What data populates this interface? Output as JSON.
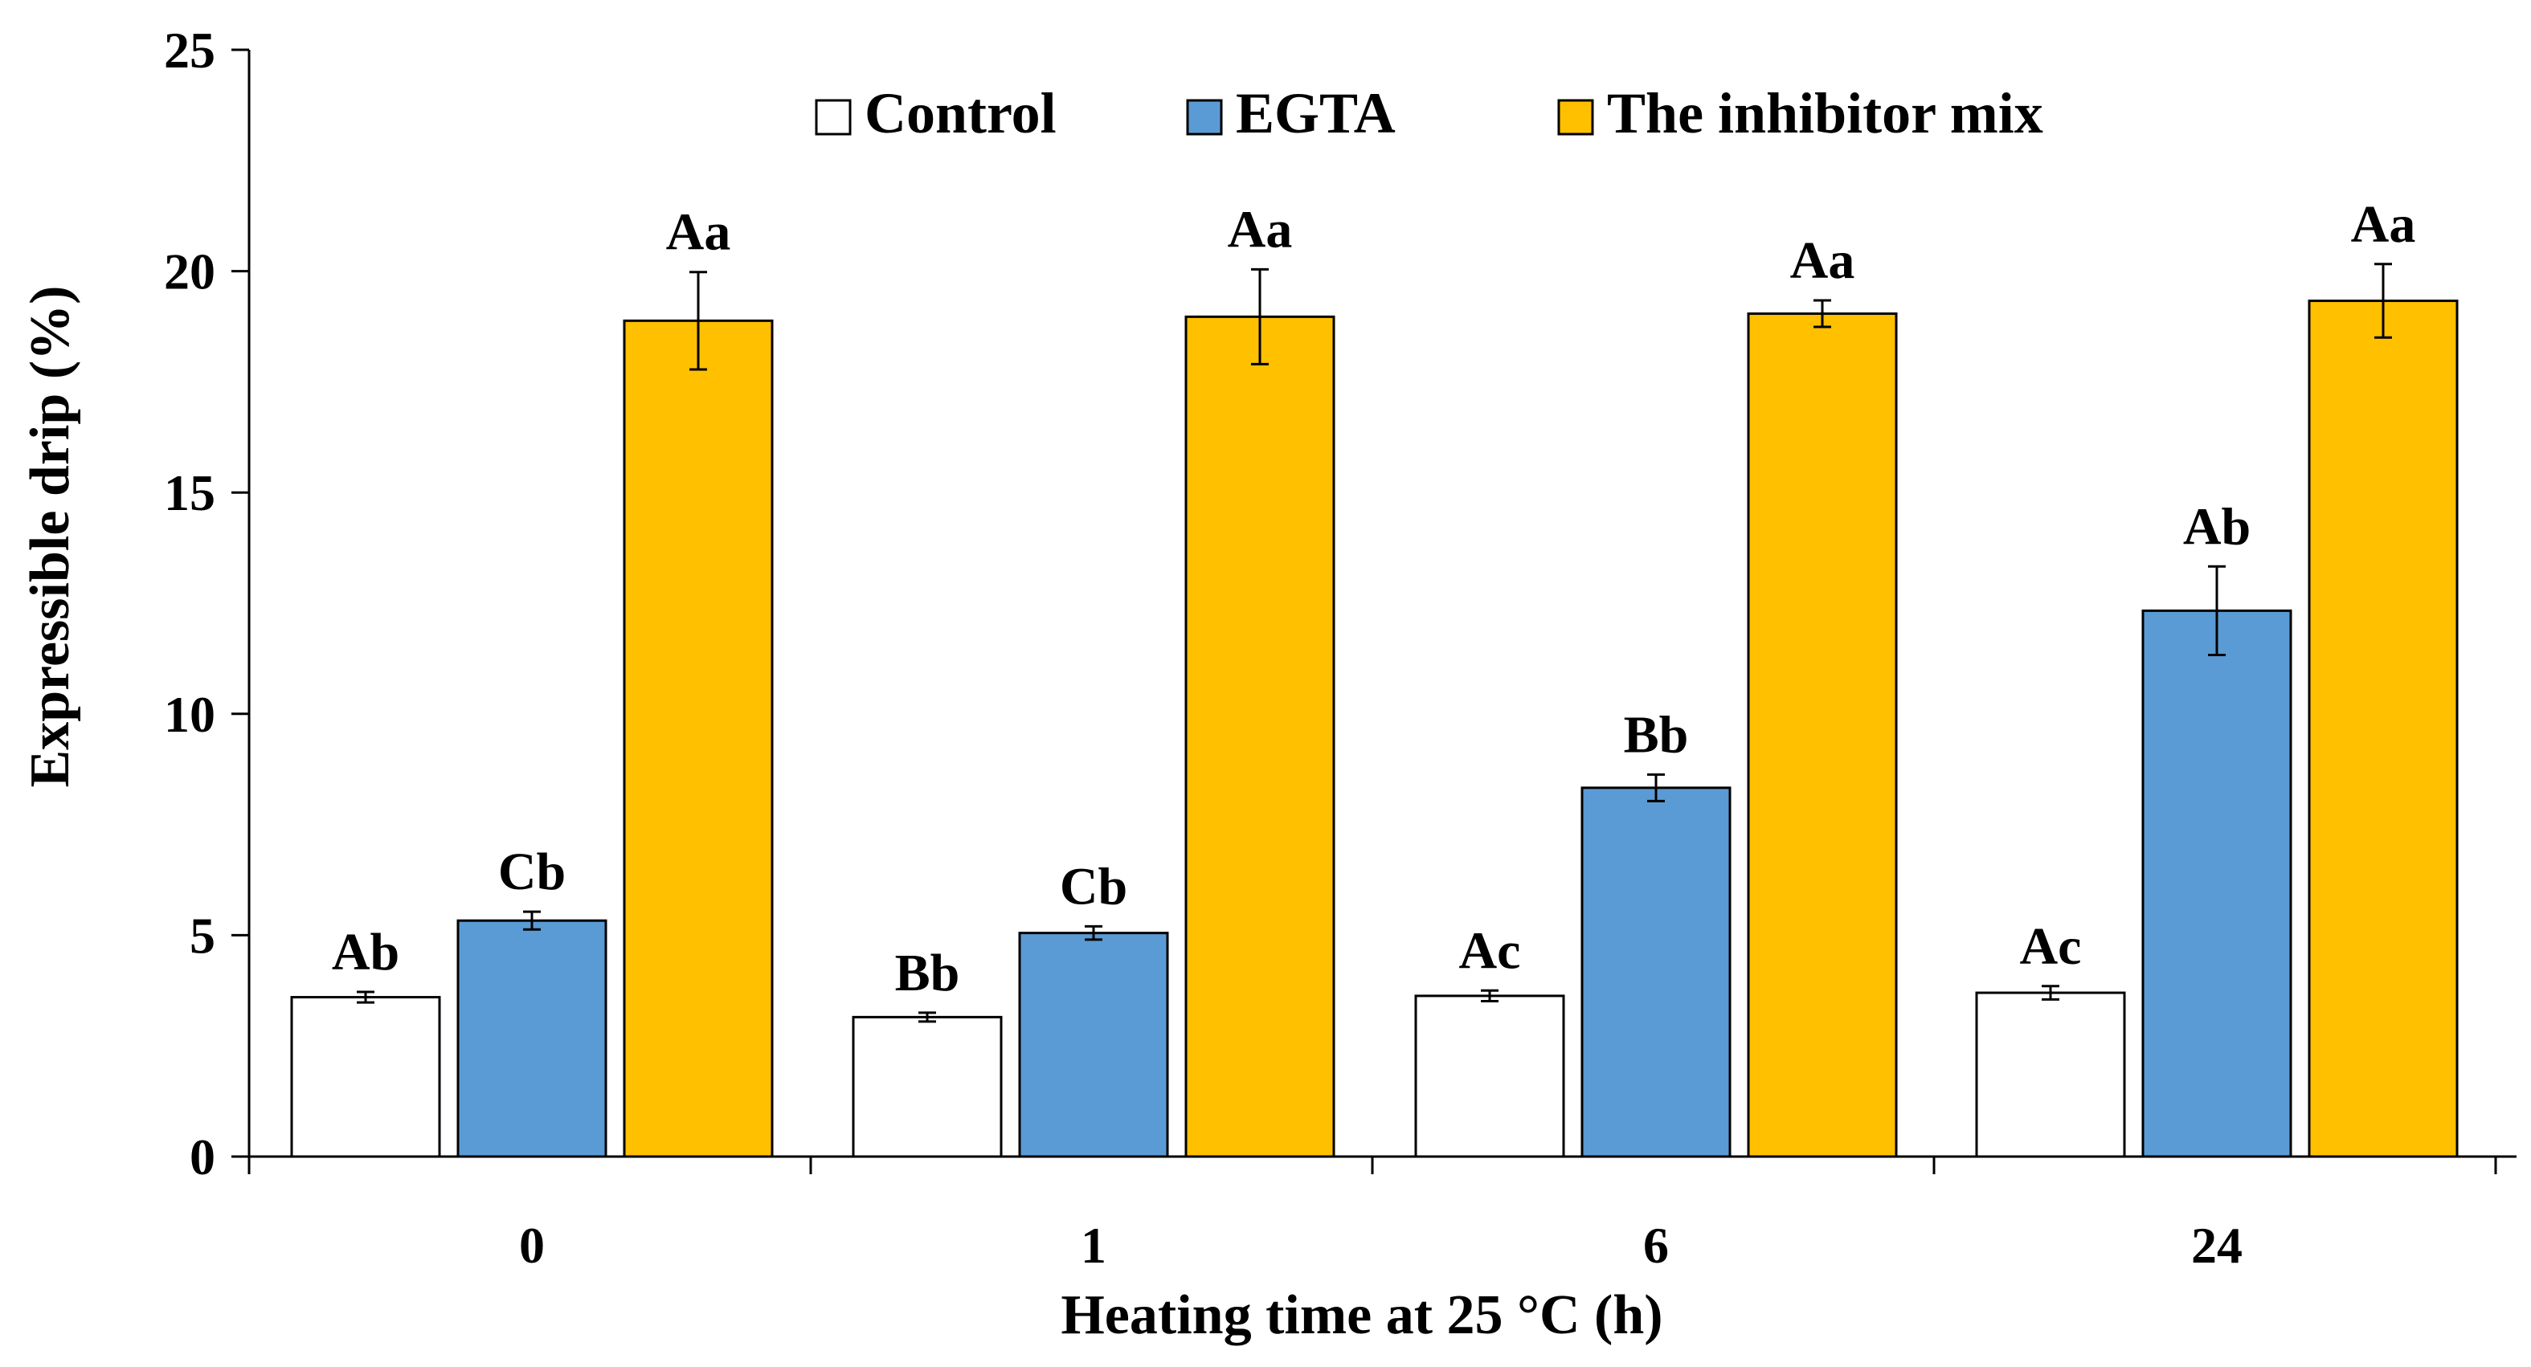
{
  "chart_data": {
    "type": "bar",
    "title": "",
    "xlabel": "Heating time at 25 °C (h)",
    "ylabel": "Expressible drip (%)",
    "ylim": [
      0,
      25
    ],
    "yticks": [
      0,
      5,
      10,
      15,
      20,
      25
    ],
    "categories": [
      "0",
      "1",
      "6",
      "24"
    ],
    "legend_position": "top-center",
    "series": [
      {
        "name": "Control",
        "color": "#ffffff",
        "values": [
          3.6,
          3.15,
          3.63,
          3.7
        ],
        "errors": [
          0.12,
          0.1,
          0.12,
          0.15
        ],
        "labels": [
          "Ab",
          "Bb",
          "Ac",
          "Ac"
        ]
      },
      {
        "name": "EGTA",
        "color": "#5b9bd5",
        "values": [
          5.33,
          5.05,
          8.33,
          12.33
        ],
        "errors": [
          0.2,
          0.15,
          0.3,
          1.0
        ],
        "labels": [
          "Cb",
          "Cb",
          "Bb",
          "Ab"
        ]
      },
      {
        "name": "The inhibitor mix",
        "color": "#ffc000",
        "values": [
          18.88,
          18.97,
          19.04,
          19.33
        ],
        "errors": [
          1.1,
          1.07,
          0.3,
          0.83
        ],
        "labels": [
          "Aa",
          "Aa",
          "Aa",
          "Aa"
        ]
      }
    ]
  }
}
